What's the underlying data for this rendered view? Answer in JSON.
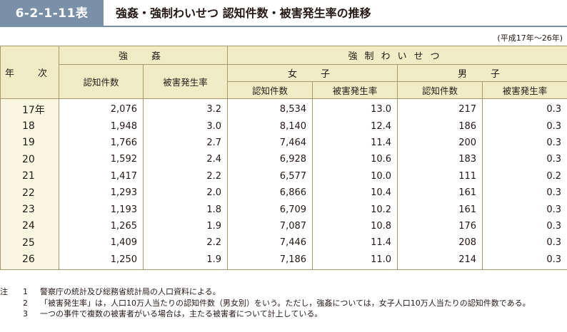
{
  "header": {
    "badge": "6-2-1-11表",
    "title": "強姦・強制わいせつ 認知件数・被害発生率の推移",
    "period": "(平成17年～26年)"
  },
  "table": {
    "year_header": "年　次",
    "group_rape": "強　姦",
    "group_indecent": "強制わいせつ",
    "sub_female": "女　子",
    "sub_male": "男　子",
    "col_cases": "認知件数",
    "col_rate": "被害発生率",
    "rows": [
      {
        "year": "17年",
        "rape_cases": "2,076",
        "rape_rate": "3.2",
        "f_cases": "8,534",
        "f_rate": "13.0",
        "m_cases": "217",
        "m_rate": "0.3"
      },
      {
        "year": "18",
        "rape_cases": "1,948",
        "rape_rate": "3.0",
        "f_cases": "8,140",
        "f_rate": "12.4",
        "m_cases": "186",
        "m_rate": "0.3"
      },
      {
        "year": "19",
        "rape_cases": "1,766",
        "rape_rate": "2.7",
        "f_cases": "7,464",
        "f_rate": "11.4",
        "m_cases": "200",
        "m_rate": "0.3"
      },
      {
        "year": "20",
        "rape_cases": "1,592",
        "rape_rate": "2.4",
        "f_cases": "6,928",
        "f_rate": "10.6",
        "m_cases": "183",
        "m_rate": "0.3"
      },
      {
        "year": "21",
        "rape_cases": "1,417",
        "rape_rate": "2.2",
        "f_cases": "6,577",
        "f_rate": "10.0",
        "m_cases": "111",
        "m_rate": "0.2"
      },
      {
        "year": "22",
        "rape_cases": "1,293",
        "rape_rate": "2.0",
        "f_cases": "6,866",
        "f_rate": "10.4",
        "m_cases": "161",
        "m_rate": "0.3"
      },
      {
        "year": "23",
        "rape_cases": "1,193",
        "rape_rate": "1.8",
        "f_cases": "6,709",
        "f_rate": "10.2",
        "m_cases": "161",
        "m_rate": "0.3"
      },
      {
        "year": "24",
        "rape_cases": "1,265",
        "rape_rate": "1.9",
        "f_cases": "7,087",
        "f_rate": "10.8",
        "m_cases": "176",
        "m_rate": "0.3"
      },
      {
        "year": "25",
        "rape_cases": "1,409",
        "rape_rate": "2.2",
        "f_cases": "7,446",
        "f_rate": "11.4",
        "m_cases": "208",
        "m_rate": "0.3"
      },
      {
        "year": "26",
        "rape_cases": "1,250",
        "rape_rate": "1.9",
        "f_cases": "7,186",
        "f_rate": "11.0",
        "m_cases": "214",
        "m_rate": "0.3"
      }
    ]
  },
  "notes": {
    "label": "注",
    "items": [
      {
        "num": "1",
        "text": "警察庁の統計及び総務省統計局の人口資料による。"
      },
      {
        "num": "2",
        "text": "「被害発生率」は，人口10万人当たりの認知件数（男女別）をいう。ただし，強姦については，女子人口10万人当たりの認知件数である。"
      },
      {
        "num": "3",
        "text": "一つの事件で複数の被害者がいる場合は，主たる被害者について計上している。"
      }
    ]
  },
  "colors": {
    "badge": "#7a8fa8",
    "header_bg": "#f2ecc6",
    "year_bg": "#fbf6e2",
    "border": "#a89a6a"
  }
}
